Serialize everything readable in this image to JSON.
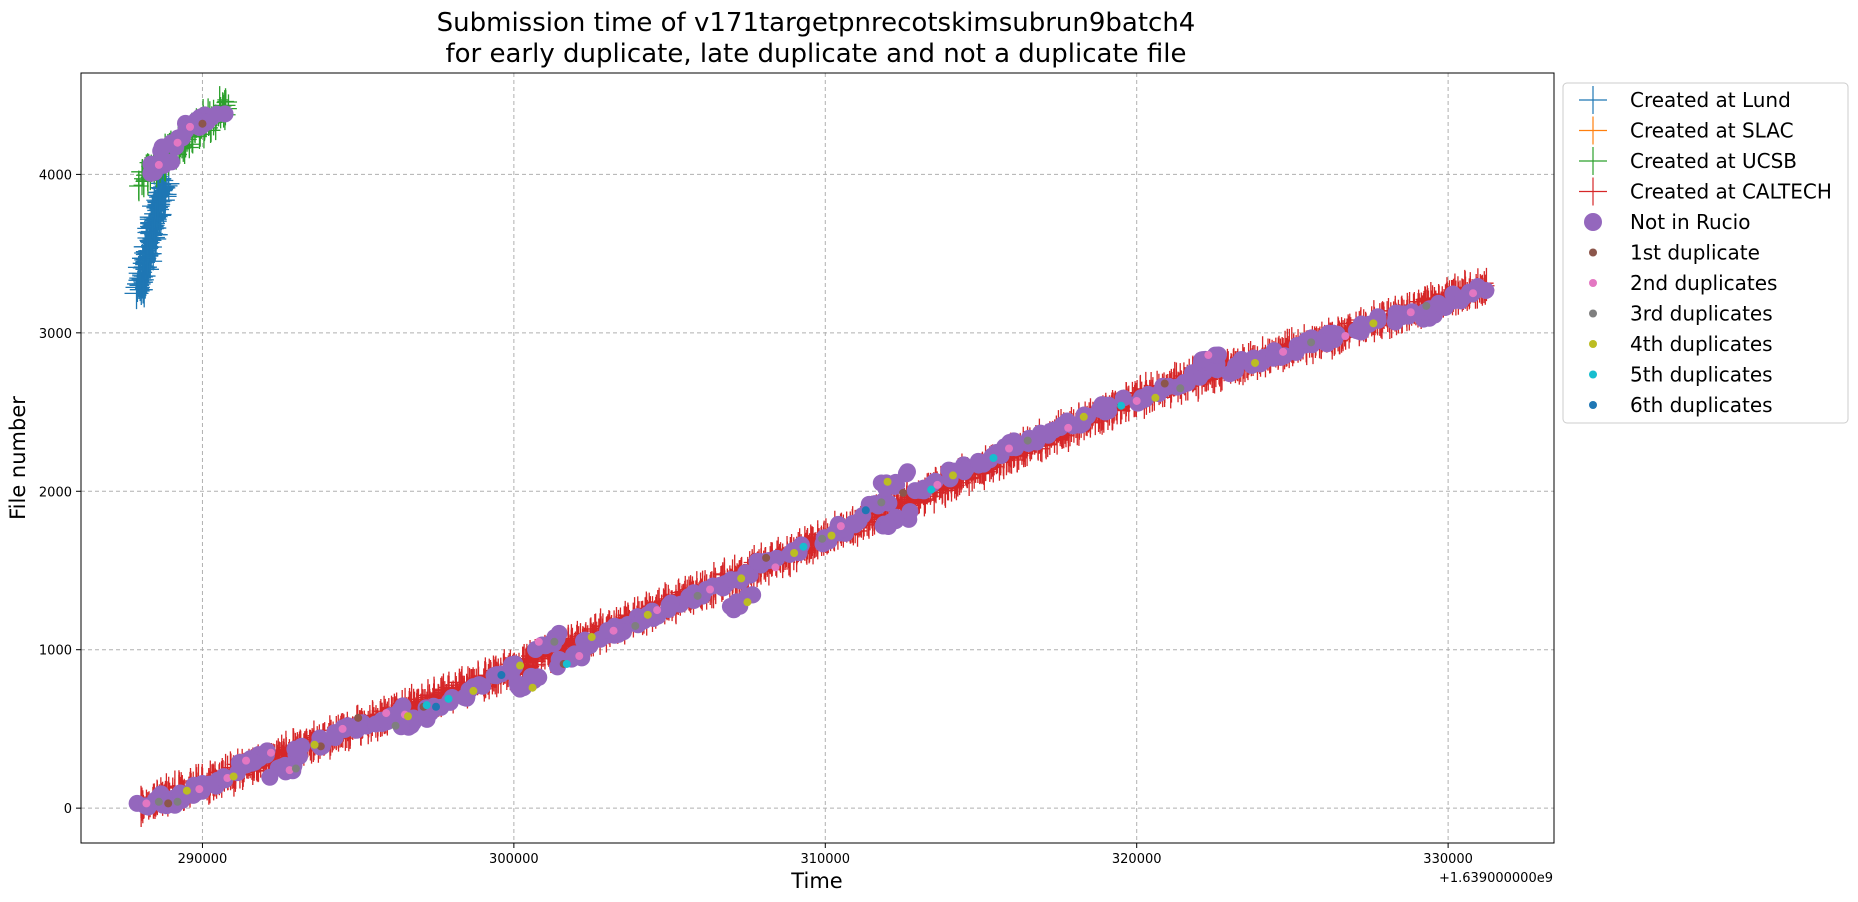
{
  "chart_data": {
    "type": "scatter",
    "title": [
      "Submission time of v171targetpnrecotskimsubrun9batch4",
      "for early duplicate, late duplicate and not a duplicate file"
    ],
    "xlabel": "Time",
    "ylabel": "File number",
    "x_offset_label": "+1.639000000e9",
    "xlim": [
      286100,
      333400
    ],
    "ylim": [
      -220,
      4640
    ],
    "xticks": [
      290000,
      300000,
      310000,
      320000,
      330000
    ],
    "xtick_labels": [
      "290000",
      "300000",
      "310000",
      "320000",
      "330000"
    ],
    "yticks": [
      0,
      1000,
      2000,
      3000,
      4000
    ],
    "ytick_labels": [
      "0",
      "1000",
      "2000",
      "3000",
      "4000"
    ],
    "grid": true,
    "legend_position": "outside-upper-right",
    "legend": [
      {
        "label": "Created at Lund",
        "marker": "plus",
        "color": "#1f77b4"
      },
      {
        "label": "Created at SLAC",
        "marker": "plus",
        "color": "#ff7f0e"
      },
      {
        "label": "Created at UCSB",
        "marker": "plus",
        "color": "#2ca02c"
      },
      {
        "label": "Created at CALTECH",
        "marker": "plus",
        "color": "#d62728"
      },
      {
        "label": "Not in Rucio",
        "marker": "big-dot",
        "color": "#9467bd"
      },
      {
        "label": "1st duplicate",
        "marker": "dot",
        "color": "#8c564b"
      },
      {
        "label": "2nd duplicates",
        "marker": "dot",
        "color": "#e377c2"
      },
      {
        "label": "3rd duplicates",
        "marker": "dot",
        "color": "#7f7f7f"
      },
      {
        "label": "4th duplicates",
        "marker": "dot",
        "color": "#bcbd22"
      },
      {
        "label": "5th duplicates",
        "marker": "dot",
        "color": "#17becf"
      },
      {
        "label": "6th duplicates",
        "marker": "dot",
        "color": "#1f77b4"
      }
    ],
    "series": [
      {
        "name": "Created at Lund",
        "color": "#1f77b4",
        "marker": "plus",
        "segments": [
          {
            "x": [
              288000,
              288800
            ],
            "y": [
              3280,
              3980
            ],
            "points": 260,
            "spread_x": 300,
            "spread_y": 80
          }
        ]
      },
      {
        "name": "Created at SLAC",
        "color": "#ff7f0e",
        "marker": "plus",
        "segments": []
      },
      {
        "name": "Created at UCSB",
        "color": "#2ca02c",
        "marker": "plus",
        "segments": [
          {
            "x": [
              288000,
              290800
            ],
            "y": [
              3980,
              4440
            ],
            "points": 120,
            "spread_x": 250,
            "spread_y": 120
          }
        ]
      },
      {
        "name": "Created at CALTECH",
        "color": "#d62728",
        "marker": "plus",
        "segments": [
          {
            "x": [
              288000,
              300000
            ],
            "y": [
              10,
              880
            ],
            "points": 560,
            "spread_x": 200,
            "spread_y": 80
          },
          {
            "x": [
              300000,
              310000
            ],
            "y": [
              880,
              1700
            ],
            "points": 460,
            "spread_x": 200,
            "spread_y": 80
          },
          {
            "x": [
              310000,
              320000
            ],
            "y": [
              1700,
              2590
            ],
            "points": 460,
            "spread_x": 200,
            "spread_y": 80
          },
          {
            "x": [
              320000,
              331200
            ],
            "y": [
              2590,
              3290
            ],
            "points": 460,
            "spread_x": 200,
            "spread_y": 80
          }
        ]
      },
      {
        "name": "Not in Rucio",
        "color": "#9467bd",
        "marker": "big-dot",
        "clusters": [
          {
            "x": 288300,
            "y": 30
          },
          {
            "x": 289000,
            "y": 40
          },
          {
            "x": 289600,
            "y": 100
          },
          {
            "x": 290400,
            "y": 160
          },
          {
            "x": 291200,
            "y": 260
          },
          {
            "x": 291800,
            "y": 330
          },
          {
            "x": 292600,
            "y": 240
          },
          {
            "x": 293400,
            "y": 380
          },
          {
            "x": 294200,
            "y": 450
          },
          {
            "x": 295000,
            "y": 520
          },
          {
            "x": 296000,
            "y": 580
          },
          {
            "x": 296800,
            "y": 560
          },
          {
            "x": 297600,
            "y": 640
          },
          {
            "x": 298600,
            "y": 730
          },
          {
            "x": 299600,
            "y": 850
          },
          {
            "x": 300400,
            "y": 800
          },
          {
            "x": 301000,
            "y": 1040
          },
          {
            "x": 301800,
            "y": 950
          },
          {
            "x": 302600,
            "y": 1060
          },
          {
            "x": 303400,
            "y": 1130
          },
          {
            "x": 304400,
            "y": 1220
          },
          {
            "x": 305400,
            "y": 1300
          },
          {
            "x": 306400,
            "y": 1390
          },
          {
            "x": 307200,
            "y": 1440
          },
          {
            "x": 307400,
            "y": 1300
          },
          {
            "x": 308200,
            "y": 1560
          },
          {
            "x": 309200,
            "y": 1630
          },
          {
            "x": 310200,
            "y": 1720
          },
          {
            "x": 310800,
            "y": 1800
          },
          {
            "x": 311600,
            "y": 1900
          },
          {
            "x": 312200,
            "y": 2060
          },
          {
            "x": 312300,
            "y": 1820
          },
          {
            "x": 313200,
            "y": 2020
          },
          {
            "x": 314200,
            "y": 2120
          },
          {
            "x": 315200,
            "y": 2200
          },
          {
            "x": 316200,
            "y": 2300
          },
          {
            "x": 317200,
            "y": 2360
          },
          {
            "x": 318200,
            "y": 2450
          },
          {
            "x": 319200,
            "y": 2540
          },
          {
            "x": 320400,
            "y": 2600
          },
          {
            "x": 321200,
            "y": 2660
          },
          {
            "x": 322200,
            "y": 2760
          },
          {
            "x": 322400,
            "y": 2850
          },
          {
            "x": 323400,
            "y": 2800
          },
          {
            "x": 324400,
            "y": 2860
          },
          {
            "x": 325400,
            "y": 2930
          },
          {
            "x": 326400,
            "y": 2990
          },
          {
            "x": 327400,
            "y": 3050
          },
          {
            "x": 328400,
            "y": 3110
          },
          {
            "x": 329200,
            "y": 3110
          },
          {
            "x": 330000,
            "y": 3200
          },
          {
            "x": 330800,
            "y": 3260
          },
          {
            "x": 289700,
            "y": 4310
          },
          {
            "x": 290300,
            "y": 4360
          },
          {
            "x": 289000,
            "y": 4180
          },
          {
            "x": 288600,
            "y": 4060
          }
        ]
      },
      {
        "name": "1st duplicate",
        "color": "#8c564b",
        "marker": "dot",
        "points": [
          {
            "x": 288900,
            "y": 30
          },
          {
            "x": 293800,
            "y": 390
          },
          {
            "x": 295000,
            "y": 570
          },
          {
            "x": 297100,
            "y": 640
          },
          {
            "x": 301600,
            "y": 910
          },
          {
            "x": 308100,
            "y": 1580
          },
          {
            "x": 312500,
            "y": 1990
          },
          {
            "x": 320900,
            "y": 2680
          },
          {
            "x": 290000,
            "y": 4320
          }
        ]
      },
      {
        "name": "2nd duplicates",
        "color": "#e377c2",
        "marker": "dot",
        "points": [
          {
            "x": 288200,
            "y": 30
          },
          {
            "x": 289900,
            "y": 120
          },
          {
            "x": 290800,
            "y": 190
          },
          {
            "x": 291400,
            "y": 300
          },
          {
            "x": 292200,
            "y": 350
          },
          {
            "x": 292800,
            "y": 240
          },
          {
            "x": 294500,
            "y": 500
          },
          {
            "x": 295900,
            "y": 600
          },
          {
            "x": 296500,
            "y": 590
          },
          {
            "x": 300800,
            "y": 1050
          },
          {
            "x": 302100,
            "y": 960
          },
          {
            "x": 303200,
            "y": 1120
          },
          {
            "x": 304600,
            "y": 1250
          },
          {
            "x": 306300,
            "y": 1380
          },
          {
            "x": 308400,
            "y": 1520
          },
          {
            "x": 310500,
            "y": 1780
          },
          {
            "x": 313600,
            "y": 2040
          },
          {
            "x": 315900,
            "y": 2270
          },
          {
            "x": 317800,
            "y": 2400
          },
          {
            "x": 320000,
            "y": 2570
          },
          {
            "x": 322300,
            "y": 2860
          },
          {
            "x": 324700,
            "y": 2880
          },
          {
            "x": 326700,
            "y": 2980
          },
          {
            "x": 328800,
            "y": 3130
          },
          {
            "x": 330800,
            "y": 3250
          },
          {
            "x": 288600,
            "y": 4060
          },
          {
            "x": 289200,
            "y": 4200
          },
          {
            "x": 289600,
            "y": 4300
          }
        ]
      },
      {
        "name": "3rd duplicates",
        "color": "#7f7f7f",
        "marker": "dot",
        "points": [
          {
            "x": 288600,
            "y": 40
          },
          {
            "x": 289200,
            "y": 40
          },
          {
            "x": 293000,
            "y": 250
          },
          {
            "x": 296200,
            "y": 520
          },
          {
            "x": 301300,
            "y": 1050
          },
          {
            "x": 303900,
            "y": 1150
          },
          {
            "x": 305900,
            "y": 1340
          },
          {
            "x": 309900,
            "y": 1700
          },
          {
            "x": 311800,
            "y": 1930
          },
          {
            "x": 316500,
            "y": 2320
          },
          {
            "x": 321400,
            "y": 2650
          },
          {
            "x": 325600,
            "y": 2940
          },
          {
            "x": 329300,
            "y": 3170
          }
        ]
      },
      {
        "name": "4th duplicates",
        "color": "#bcbd22",
        "marker": "dot",
        "points": [
          {
            "x": 289500,
            "y": 110
          },
          {
            "x": 291000,
            "y": 200
          },
          {
            "x": 293600,
            "y": 400
          },
          {
            "x": 296600,
            "y": 580
          },
          {
            "x": 298700,
            "y": 740
          },
          {
            "x": 300200,
            "y": 900
          },
          {
            "x": 300600,
            "y": 760
          },
          {
            "x": 302500,
            "y": 1080
          },
          {
            "x": 304300,
            "y": 1220
          },
          {
            "x": 307300,
            "y": 1450
          },
          {
            "x": 307500,
            "y": 1300
          },
          {
            "x": 309000,
            "y": 1610
          },
          {
            "x": 310200,
            "y": 1720
          },
          {
            "x": 312000,
            "y": 2060
          },
          {
            "x": 314100,
            "y": 2100
          },
          {
            "x": 318300,
            "y": 2470
          },
          {
            "x": 320600,
            "y": 2590
          },
          {
            "x": 323800,
            "y": 2810
          },
          {
            "x": 327600,
            "y": 3060
          }
        ]
      },
      {
        "name": "5th duplicates",
        "color": "#17becf",
        "marker": "dot",
        "points": [
          {
            "x": 297200,
            "y": 650
          },
          {
            "x": 297900,
            "y": 690
          },
          {
            "x": 301700,
            "y": 910
          },
          {
            "x": 309300,
            "y": 1650
          },
          {
            "x": 313400,
            "y": 2010
          },
          {
            "x": 315400,
            "y": 2210
          },
          {
            "x": 319500,
            "y": 2540
          }
        ]
      },
      {
        "name": "6th duplicates",
        "color": "#1f77b4",
        "marker": "dot",
        "points": [
          {
            "x": 297500,
            "y": 640
          },
          {
            "x": 299600,
            "y": 840
          },
          {
            "x": 311300,
            "y": 1880
          }
        ]
      }
    ]
  }
}
